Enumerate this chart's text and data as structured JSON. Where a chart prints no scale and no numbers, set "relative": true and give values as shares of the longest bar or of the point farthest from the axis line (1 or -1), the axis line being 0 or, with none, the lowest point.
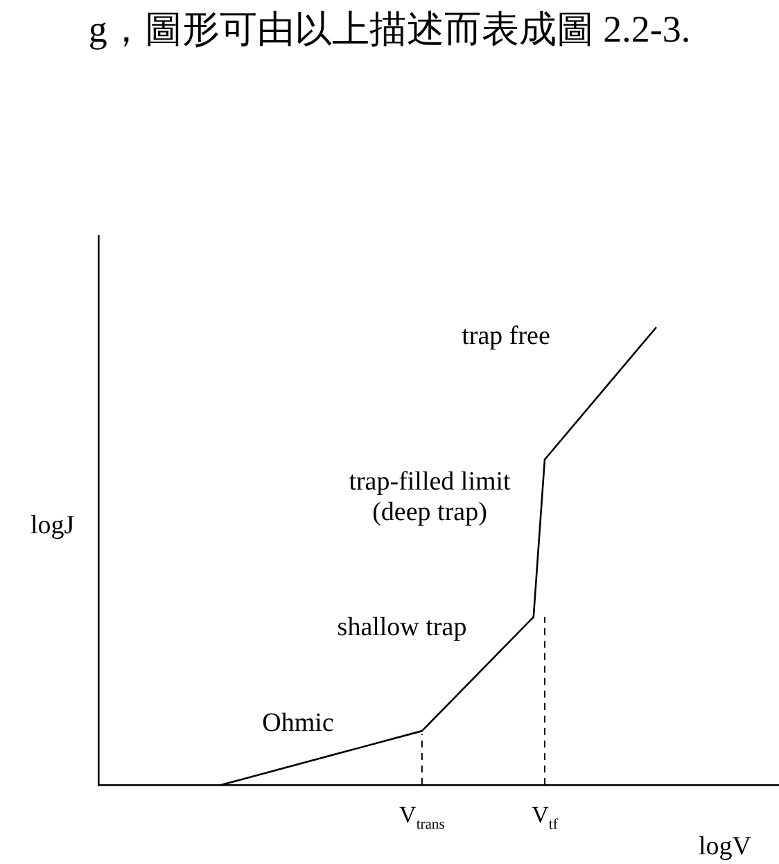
{
  "chart_data": {
    "type": "line",
    "relative": true,
    "title": "g，圖形可由以上描述而表成圖 2.2-3.",
    "xlabel": "logV",
    "ylabel": "logJ",
    "tick_labels": "x",
    "marker": "none",
    "categories": [
      null,
      null,
      null,
      null,
      null,
      null,
      null,
      null,
      null,
      null,
      null,
      null,
      null,
      null,
      null,
      null,
      null,
      null,
      null,
      null,
      null,
      null,
      null,
      null,
      null,
      null,
      null,
      null,
      null,
      "V$_{trans}$",
      null,
      null,
      null,
      null,
      null,
      null,
      null,
      null,
      null,
      null,
      "V$_{tf}$",
      null,
      null,
      null,
      null,
      null,
      null,
      null,
      null,
      null,
      null,
      null,
      null,
      null,
      null,
      null,
      null,
      null,
      null,
      null,
      null,
      null
    ],
    "series": [
      {
        "color": "#000000",
        "values": [
          null,
          null,
          null,
          null,
          null,
          null,
          null,
          null,
          null,
          null,
          null,
          0,
          null,
          null,
          null,
          null,
          null,
          null,
          null,
          null,
          null,
          null,
          null,
          null,
          null,
          null,
          null,
          null,
          null,
          0.118,
          null,
          null,
          null,
          null,
          null,
          null,
          null,
          null,
          null,
          0.367,
          0.711,
          null,
          null,
          null,
          null,
          null,
          null,
          null,
          null,
          null,
          1,
          null,
          null,
          null,
          null,
          null,
          null,
          null,
          null,
          null,
          null,
          null
        ]
      }
    ],
    "ref_lines": [
      {
        "axis": "x",
        "value": "V$_{trans}$",
        "line_style": "dashed",
        "color": "#000000"
      },
      {
        "axis": "x",
        "value": "V$_{tf}$",
        "line_style": "dashed",
        "color": "#000000"
      }
    ],
    "annotations": [
      "trap free",
      "trap-filled limit\n(deep trap)",
      "shallow trap",
      "Ohmic"
    ]
  }
}
